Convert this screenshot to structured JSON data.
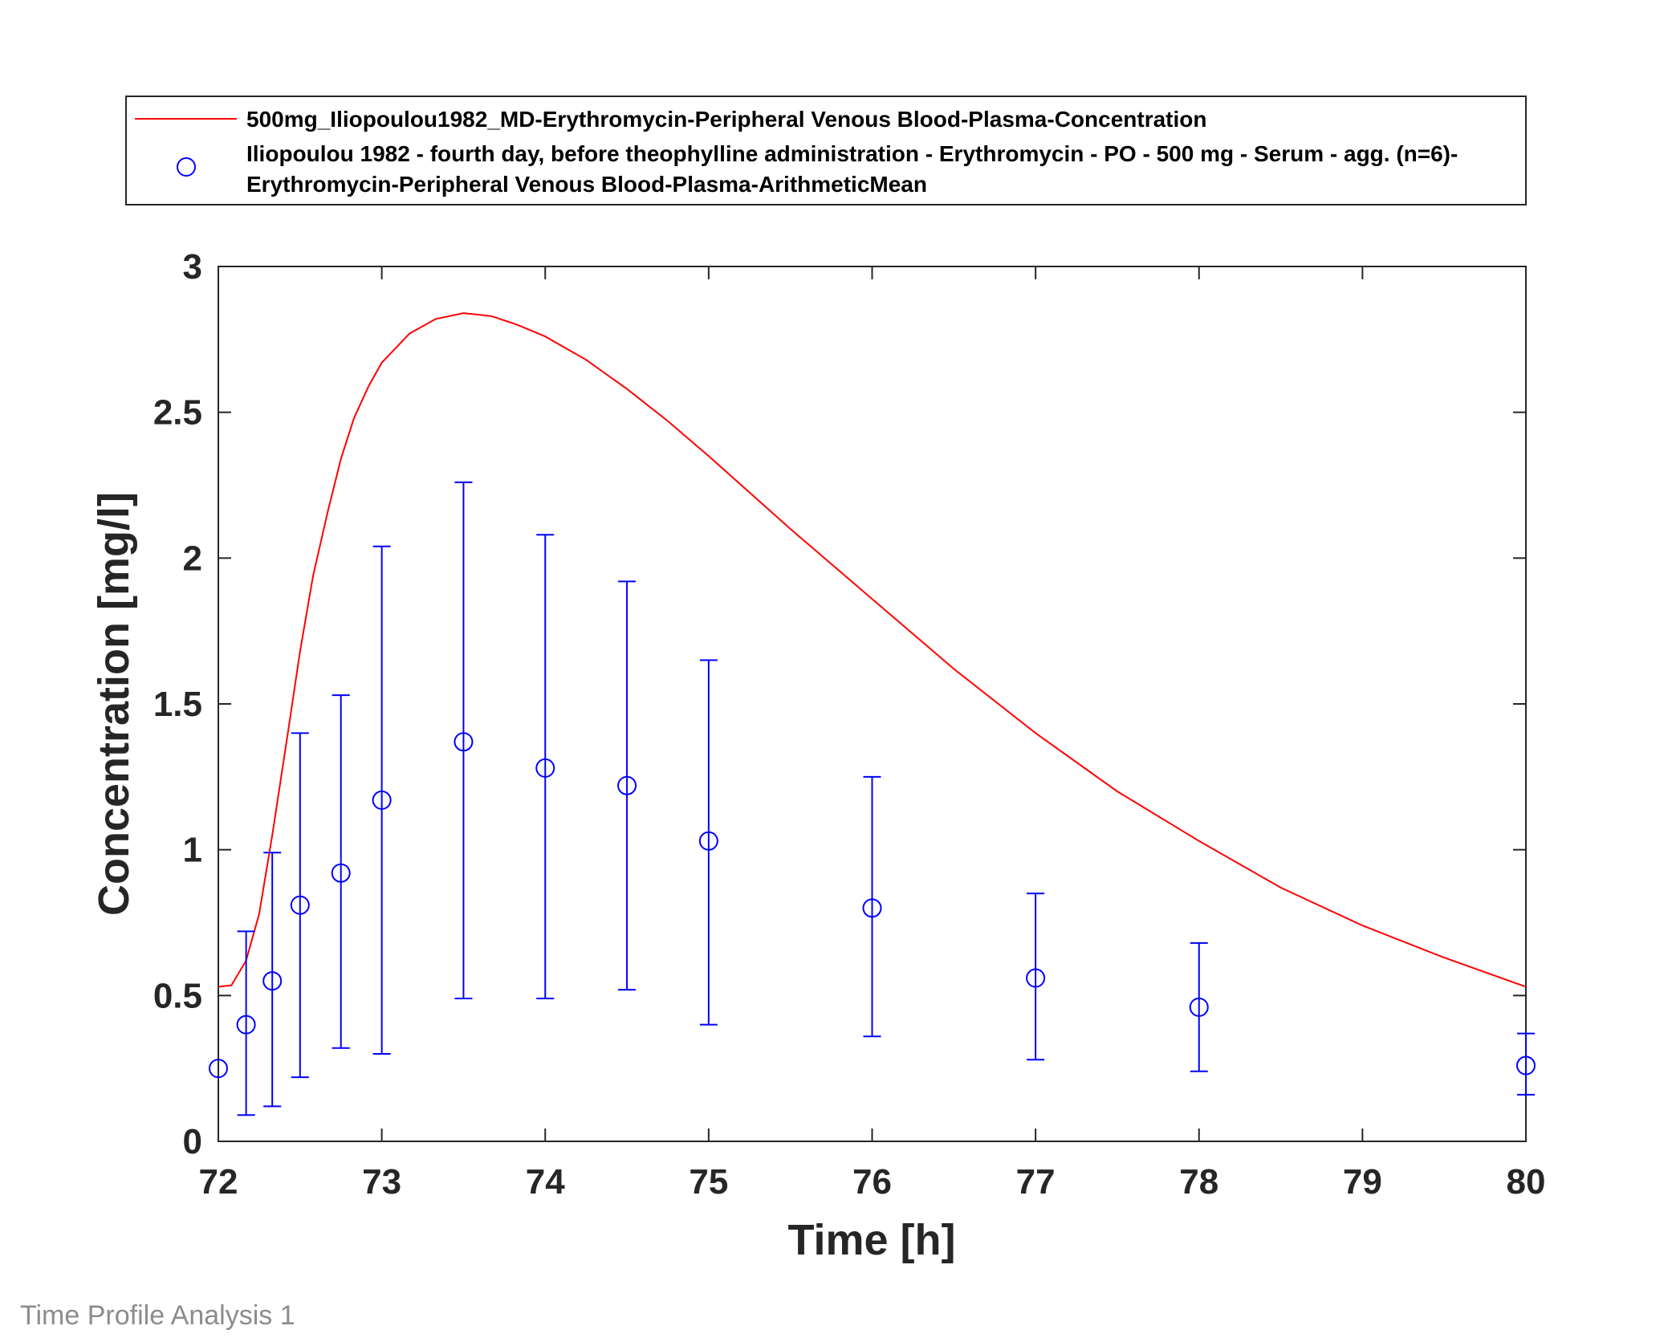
{
  "footer": "Time Profile Analysis 1",
  "colors": {
    "simulation": "#ff0000",
    "observed": "#0000ff",
    "axis": "#262626"
  },
  "chart_data": {
    "type": "line",
    "xlabel": "Time [h]",
    "ylabel": "Concentration [mg/l]",
    "xlim": [
      72,
      80
    ],
    "ylim": [
      0,
      3
    ],
    "xticks": [
      "72",
      "73",
      "74",
      "75",
      "76",
      "77",
      "78",
      "79",
      "80"
    ],
    "yticks": [
      "0",
      "0.5",
      "1",
      "1.5",
      "2",
      "2.5",
      "3"
    ],
    "legend_position": "top",
    "series": [
      {
        "name": "500mg_Iliopoulou1982_MD-Erythromycin-Peripheral Venous Blood-Plasma-Concentration",
        "kind": "line",
        "marker": "none",
        "x": [
          72.0,
          72.08,
          72.17,
          72.25,
          72.33,
          72.42,
          72.5,
          72.58,
          72.67,
          72.75,
          72.83,
          72.92,
          73.0,
          73.17,
          73.33,
          73.5,
          73.67,
          73.83,
          74.0,
          74.25,
          74.5,
          74.75,
          75.0,
          75.5,
          76.0,
          76.5,
          77.0,
          77.5,
          78.0,
          78.5,
          79.0,
          79.5,
          80.0
        ],
        "y": [
          0.53,
          0.535,
          0.62,
          0.78,
          1.05,
          1.38,
          1.68,
          1.94,
          2.16,
          2.34,
          2.48,
          2.59,
          2.67,
          2.77,
          2.82,
          2.84,
          2.83,
          2.8,
          2.76,
          2.68,
          2.58,
          2.47,
          2.35,
          2.1,
          1.86,
          1.62,
          1.4,
          1.2,
          1.03,
          0.87,
          0.74,
          0.63,
          0.53
        ]
      },
      {
        "name": "Iliopoulou 1982 - fourth day, before theophylline administration - Erythromycin - PO - 500 mg - Serum - agg. (n=6)-Erythromycin-Peripheral Venous Blood-Plasma-ArithmeticMean",
        "name_lines": [
          "Iliopoulou 1982 - fourth day, before theophylline administration - Erythromycin - PO - 500 mg - Serum - agg. (n=6)-",
          "Erythromycin-Peripheral Venous Blood-Plasma-ArithmeticMean"
        ],
        "kind": "scatter",
        "marker": "circle",
        "x": [
          72.0,
          72.17,
          72.33,
          72.5,
          72.75,
          73.0,
          73.5,
          74.0,
          74.5,
          75.0,
          76.0,
          77.0,
          78.0,
          80.0
        ],
        "y": [
          0.25,
          0.4,
          0.55,
          0.81,
          0.92,
          1.17,
          1.37,
          1.28,
          1.22,
          1.03,
          0.8,
          0.56,
          0.46,
          0.26
        ],
        "yerr_low": [
          null,
          0.09,
          0.12,
          0.22,
          0.32,
          0.3,
          0.49,
          0.49,
          0.52,
          0.4,
          0.36,
          0.28,
          0.24,
          0.16
        ],
        "yerr_high": [
          null,
          0.72,
          0.99,
          1.4,
          1.53,
          2.04,
          2.26,
          2.08,
          1.92,
          1.65,
          1.25,
          0.85,
          0.68,
          0.37
        ]
      }
    ]
  }
}
